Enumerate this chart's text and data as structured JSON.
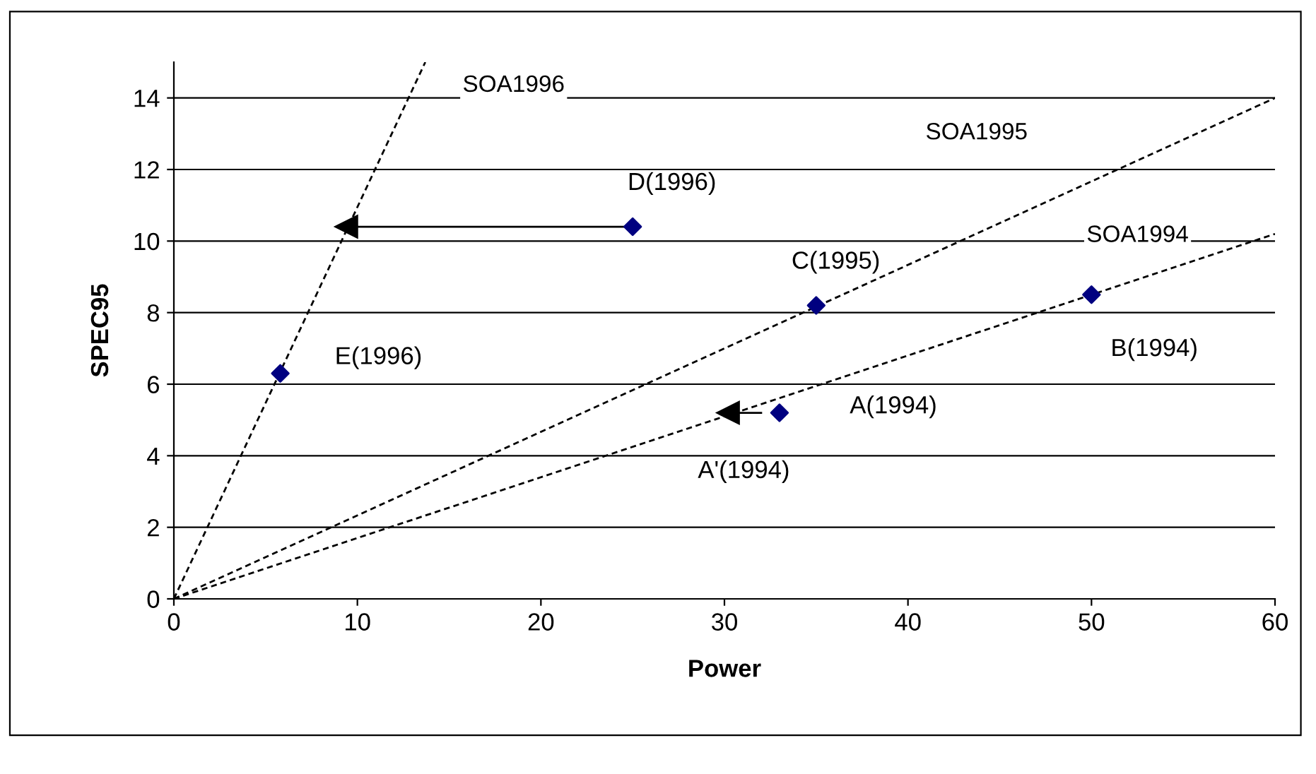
{
  "chart_data": {
    "type": "scatter",
    "xlabel": "Power",
    "ylabel": "SPEC95",
    "xlim": [
      0,
      60
    ],
    "ylim": [
      0,
      15
    ],
    "xticks": [
      0,
      10,
      20,
      30,
      40,
      50,
      60
    ],
    "yticks": [
      0,
      2,
      4,
      6,
      8,
      10,
      12,
      14
    ],
    "grid": "y",
    "legend": false,
    "series": [
      {
        "color": "#000080",
        "marker": "diamond",
        "x": [
          5.8,
          25,
          35,
          33,
          50
        ],
        "values": [
          6.3,
          10.4,
          8.2,
          5.2,
          8.5
        ]
      },
      {
        "type": "line",
        "name": "SOA1996",
        "color": "#000000",
        "line_style": "dashed",
        "marker": "none",
        "x": [
          0,
          13.7
        ],
        "values": [
          0,
          15
        ]
      },
      {
        "type": "line",
        "name": "SOA1995",
        "color": "#000000",
        "line_style": "dashed",
        "marker": "none",
        "x": [
          0,
          60
        ],
        "values": [
          0,
          14
        ]
      },
      {
        "type": "line",
        "name": "SOA1994",
        "color": "#000000",
        "line_style": "dashed",
        "marker": "none",
        "x": [
          0,
          60
        ],
        "values": [
          0,
          10.2
        ]
      },
      {
        "type": "line",
        "color": "#000000",
        "line_style": "solid",
        "marker": "triangle",
        "x": [
          25,
          9.4
        ],
        "values": [
          10.4,
          10.4
        ]
      },
      {
        "type": "line",
        "color": "#000000",
        "line_style": "solid",
        "marker": "triangle",
        "x": [
          32,
          30.2
        ],
        "values": [
          5.2,
          5.2
        ]
      }
    ],
    "annotations": [
      {
        "text": "E(1996)",
        "x": 5.8,
        "y": 6.3
      },
      {
        "text": "D(1996)",
        "x": 25,
        "y": 10.4
      },
      {
        "text": "C(1995)",
        "x": 35,
        "y": 8.2
      },
      {
        "text": "A(1994)",
        "x": 33,
        "y": 5.2
      },
      {
        "text": "B(1994)",
        "x": 50,
        "y": 8.5
      },
      {
        "text": "A'(1994)",
        "x": 30.2,
        "y": 5.2
      }
    ]
  }
}
